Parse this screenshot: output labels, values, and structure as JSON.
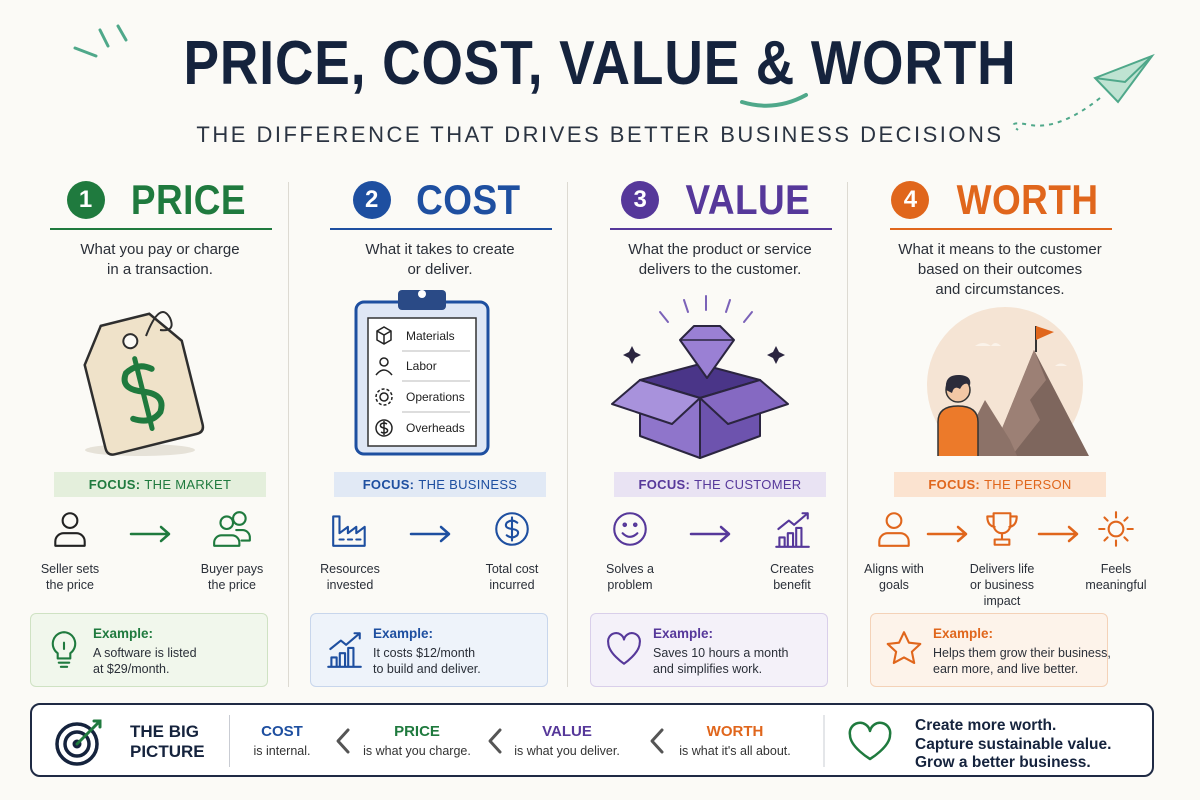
{
  "header": {
    "title": "PRICE, COST, VALUE & WORTH",
    "subtitle": "THE DIFFERENCE THAT DRIVES BETTER BUSINESS DECISIONS"
  },
  "columns": [
    {
      "number": "1",
      "title": "PRICE",
      "description": [
        "What you pay or charge",
        "in a transaction."
      ],
      "focus_label": "FOCUS:",
      "focus": "THE MARKET",
      "flow": [
        [
          "Seller sets",
          "the price"
        ],
        [
          "Buyer pays",
          "the price"
        ]
      ],
      "example_title": "Example:",
      "example": [
        "A software is listed",
        "at $29/month."
      ]
    },
    {
      "number": "2",
      "title": "COST",
      "description": [
        "What it takes to create",
        "or deliver."
      ],
      "illustration_items": [
        "Materials",
        "Labor",
        "Operations",
        "Overheads"
      ],
      "focus_label": "FOCUS:",
      "focus": "THE BUSINESS",
      "flow": [
        [
          "Resources",
          "invested"
        ],
        [
          "Total cost",
          "incurred"
        ]
      ],
      "example_title": "Example:",
      "example": [
        "It costs $12/month",
        "to build and deliver."
      ]
    },
    {
      "number": "3",
      "title": "VALUE",
      "description": [
        "What the product or service",
        "delivers to the customer."
      ],
      "focus_label": "FOCUS:",
      "focus": "THE CUSTOMER",
      "flow": [
        [
          "Solves a",
          "problem"
        ],
        [
          "Creates",
          "benefit"
        ]
      ],
      "example_title": "Example:",
      "example": [
        "Saves 10 hours a month",
        "and simplifies work."
      ]
    },
    {
      "number": "4",
      "title": "WORTH",
      "description": [
        "What it means to the customer",
        "based on their outcomes",
        "and circumstances."
      ],
      "focus_label": "FOCUS:",
      "focus": "THE PERSON",
      "flow": [
        [
          "Aligns with",
          "goals"
        ],
        [
          "Delivers life",
          "or business",
          "impact"
        ],
        [
          "Feels",
          "meaningful"
        ]
      ],
      "example_title": "Example:",
      "example": [
        "Helps them grow their business,",
        "earn more, and live better."
      ]
    }
  ],
  "footer": {
    "title": [
      "THE BIG",
      "PICTURE"
    ],
    "items": [
      {
        "term": "COST",
        "text": "is internal."
      },
      {
        "term": "PRICE",
        "text": "is what you charge."
      },
      {
        "term": "VALUE",
        "text": "is what you deliver."
      },
      {
        "term": "WORTH",
        "text": "is what it's all about."
      }
    ],
    "closing": [
      "Create more worth.",
      "Capture sustainable value.",
      "Grow a better business."
    ]
  }
}
